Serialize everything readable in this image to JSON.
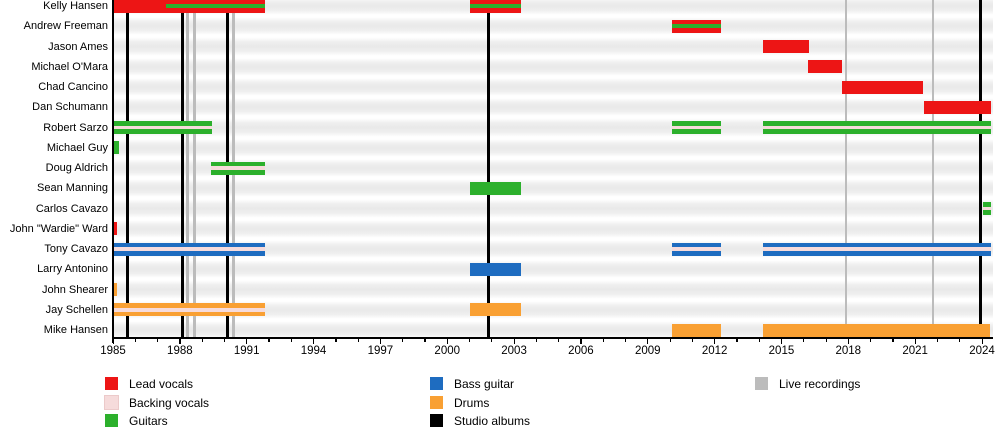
{
  "page": {
    "background": "#ffffff",
    "description": "Band members timeline chart"
  },
  "colors": {
    "lead_vocals": "#ed1515",
    "backing_vocals": "#f6dbdb",
    "guitars": "#2cb02c",
    "bass_guitar": "#1e6cc0",
    "drums": "#f9a033",
    "studio_albums": "#000000",
    "live_recordings": "#bcbcbc",
    "row_band": "#efefef",
    "axis": "#000000"
  },
  "chart_data": {
    "type": "timeline",
    "title": "",
    "x_axis": {
      "start_year": 1985,
      "end_year": 2024,
      "label_step": 3,
      "minor_tick_step": 1,
      "tick_labels": [
        "1985",
        "1988",
        "1991",
        "1994",
        "1997",
        "2000",
        "2003",
        "2006",
        "2009",
        "2012",
        "2015",
        "2018",
        "2021",
        "2024"
      ]
    },
    "members": [
      {
        "name": "Kelly Hansen",
        "bars": [
          {
            "role": "lead_vocals",
            "start": 1985.0,
            "end": 1991.8,
            "stripes": [
              {
                "role": "guitars",
                "start": 1987.4,
                "end": 1991.8
              }
            ]
          },
          {
            "role": "lead_vocals",
            "start": 2001.0,
            "end": 2003.3,
            "stripes": [
              {
                "role": "guitars",
                "start": 2001.0,
                "end": 2003.3
              }
            ]
          }
        ]
      },
      {
        "name": "Andrew Freeman",
        "bars": [
          {
            "role": "lead_vocals",
            "start": 2010.1,
            "end": 2012.3,
            "stripes": [
              {
                "role": "guitars",
                "start": 2010.1,
                "end": 2012.3
              }
            ]
          }
        ]
      },
      {
        "name": "Jason Ames",
        "bars": [
          {
            "role": "lead_vocals",
            "start": 2014.15,
            "end": 2016.25,
            "stripes": []
          }
        ]
      },
      {
        "name": "Michael O'Mara",
        "bars": [
          {
            "role": "lead_vocals",
            "start": 2016.2,
            "end": 2017.7,
            "stripes": []
          }
        ]
      },
      {
        "name": "Chad Cancino",
        "bars": [
          {
            "role": "lead_vocals",
            "start": 2017.7,
            "end": 2021.35,
            "stripes": []
          }
        ]
      },
      {
        "name": "Dan Schumann",
        "bars": [
          {
            "role": "lead_vocals",
            "start": 2021.4,
            "end": 2024.4,
            "stripes": []
          }
        ]
      },
      {
        "name": "Robert Sarzo",
        "bars": [
          {
            "role": "guitars",
            "start": 1985.0,
            "end": 1989.45,
            "stripes": [
              {
                "role": "backing_vocals",
                "start": 1985.0,
                "end": 1989.45
              }
            ]
          },
          {
            "role": "guitars",
            "start": 2010.1,
            "end": 2012.3,
            "stripes": [
              {
                "role": "backing_vocals",
                "start": 2010.1,
                "end": 2012.3
              }
            ]
          },
          {
            "role": "guitars",
            "start": 2014.15,
            "end": 2024.4,
            "stripes": [
              {
                "role": "backing_vocals",
                "start": 2014.15,
                "end": 2024.4
              }
            ]
          }
        ]
      },
      {
        "name": "Michael Guy",
        "bars": [
          {
            "role": "guitars",
            "start": 1985.0,
            "end": 1985.25,
            "stripes": []
          }
        ]
      },
      {
        "name": "Doug Aldrich",
        "bars": [
          {
            "role": "guitars",
            "start": 1989.4,
            "end": 1991.8,
            "stripes": [
              {
                "role": "backing_vocals",
                "start": 1989.4,
                "end": 1991.8
              }
            ]
          }
        ]
      },
      {
        "name": "Sean Manning",
        "bars": [
          {
            "role": "guitars",
            "start": 2001.0,
            "end": 2003.3,
            "stripes": []
          }
        ]
      },
      {
        "name": "Carlos Cavazo",
        "bars": [
          {
            "role": "guitars",
            "start": 2024.05,
            "end": 2024.4,
            "stripes": [
              {
                "role": "backing_vocals",
                "start": 2024.05,
                "end": 2024.4
              }
            ]
          }
        ]
      },
      {
        "name": "John \"Wardie\" Ward",
        "bars": [
          {
            "role": "lead_vocals",
            "start": 1985.0,
            "end": 1985.2,
            "stripes": []
          }
        ]
      },
      {
        "name": "Tony Cavazo",
        "bars": [
          {
            "role": "bass_guitar",
            "start": 1985.0,
            "end": 1991.8,
            "stripes": [
              {
                "role": "backing_vocals",
                "start": 1985.0,
                "end": 1991.8
              }
            ]
          },
          {
            "role": "bass_guitar",
            "start": 2010.1,
            "end": 2012.3,
            "stripes": [
              {
                "role": "backing_vocals",
                "start": 2010.1,
                "end": 2012.3
              }
            ]
          },
          {
            "role": "bass_guitar",
            "start": 2014.15,
            "end": 2024.4,
            "stripes": [
              {
                "role": "backing_vocals",
                "start": 2014.15,
                "end": 2024.4
              }
            ]
          }
        ]
      },
      {
        "name": "Larry Antonino",
        "bars": [
          {
            "role": "bass_guitar",
            "start": 2001.0,
            "end": 2003.3,
            "stripes": []
          }
        ]
      },
      {
        "name": "John Shearer",
        "bars": [
          {
            "role": "drums",
            "start": 1985.0,
            "end": 1985.2,
            "stripes": []
          }
        ]
      },
      {
        "name": "Jay Schellen",
        "bars": [
          {
            "role": "drums",
            "start": 1985.0,
            "end": 1991.8,
            "stripes": [
              {
                "role": "backing_vocals",
                "start": 1985.0,
                "end": 1991.8
              }
            ]
          },
          {
            "role": "drums",
            "start": 2001.0,
            "end": 2003.3,
            "stripes": []
          }
        ]
      },
      {
        "name": "Mike Hansen",
        "bars": [
          {
            "role": "drums",
            "start": 2010.1,
            "end": 2012.3,
            "stripes": []
          },
          {
            "role": "drums",
            "start": 2014.15,
            "end": 2024.35,
            "stripes": []
          }
        ]
      }
    ],
    "studio_albums_years": [
      1985.65,
      1988.1,
      1990.15,
      2001.85,
      2023.95
    ],
    "live_recordings_years": [
      1988.35,
      1988.65,
      1990.4,
      2017.9,
      2021.8
    ]
  },
  "legend": {
    "columns": [
      {
        "items": [
          {
            "key": "lead_vocals",
            "label": "Lead vocals"
          },
          {
            "key": "backing_vocals",
            "label": "Backing vocals"
          },
          {
            "key": "guitars",
            "label": "Guitars"
          }
        ]
      },
      {
        "items": [
          {
            "key": "bass_guitar",
            "label": "Bass guitar"
          },
          {
            "key": "drums",
            "label": "Drums"
          },
          {
            "key": "studio_albums",
            "label": "Studio albums"
          }
        ]
      },
      {
        "items": [
          {
            "key": "live_recordings",
            "label": "Live recordings"
          }
        ]
      }
    ]
  }
}
